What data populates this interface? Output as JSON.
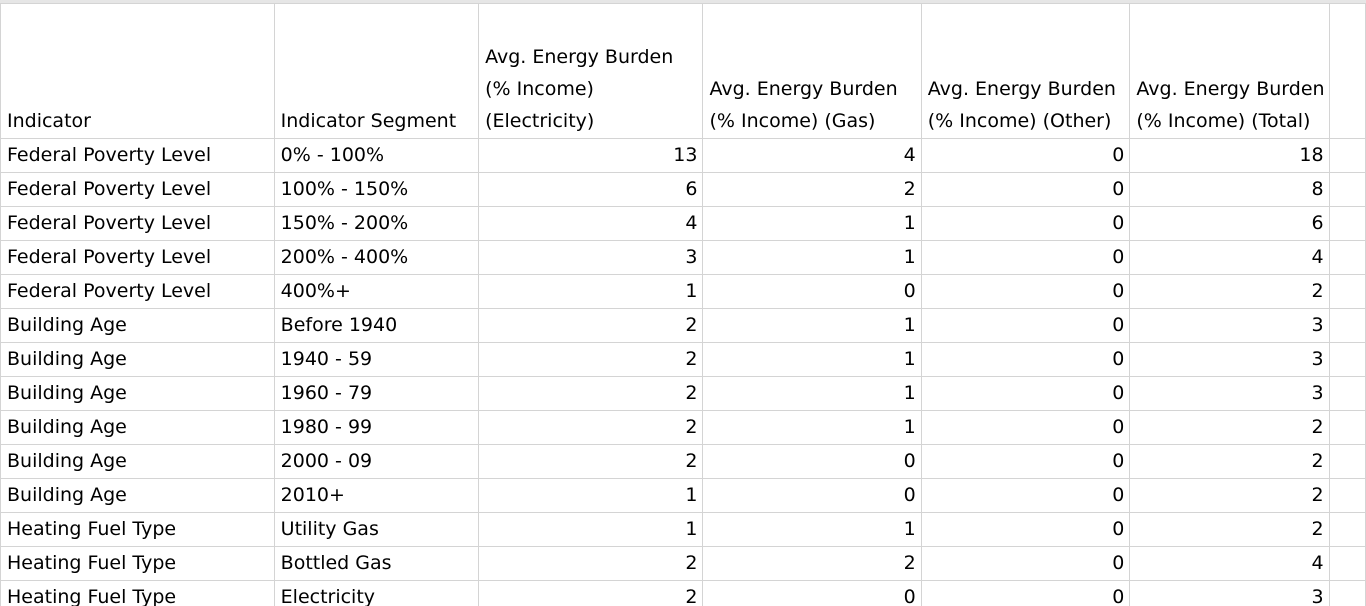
{
  "headers": [
    "Indicator",
    "Indicator Segment",
    [
      "Avg. Energy Burden",
      "(% Income)",
      "(Electricity)"
    ],
    [
      "Avg. Energy Burden",
      "(% Income) (Gas)"
    ],
    [
      "Avg. Energy Burden",
      "(% Income) (Other)"
    ],
    [
      "Avg. Energy Burden",
      "(% Income) (Total)"
    ]
  ],
  "rows": [
    [
      "Federal Poverty Level",
      "0% - 100%",
      "13",
      "4",
      "0",
      "18"
    ],
    [
      "Federal Poverty Level",
      "100% - 150%",
      "6",
      "2",
      "0",
      "8"
    ],
    [
      "Federal Poverty Level",
      "150% - 200%",
      "4",
      "1",
      "0",
      "6"
    ],
    [
      "Federal Poverty Level",
      "200% - 400%",
      "3",
      "1",
      "0",
      "4"
    ],
    [
      "Federal Poverty Level",
      "400%+",
      "1",
      "0",
      "0",
      "2"
    ],
    [
      "Building Age",
      "Before 1940",
      "2",
      "1",
      "0",
      "3"
    ],
    [
      "Building Age",
      "1940 - 59",
      "2",
      "1",
      "0",
      "3"
    ],
    [
      "Building Age",
      "1960 - 79",
      "2",
      "1",
      "0",
      "3"
    ],
    [
      "Building Age",
      "1980 - 99",
      "2",
      "1",
      "0",
      "2"
    ],
    [
      "Building Age",
      "2000 - 09",
      "2",
      "0",
      "0",
      "2"
    ],
    [
      "Building Age",
      "2010+",
      "1",
      "0",
      "0",
      "2"
    ],
    [
      "Heating Fuel Type",
      "Utility Gas",
      "1",
      "1",
      "0",
      "2"
    ],
    [
      "Heating Fuel Type",
      "Bottled Gas",
      "2",
      "2",
      "0",
      "4"
    ],
    [
      "Heating Fuel Type",
      "Electricity",
      "2",
      "0",
      "0",
      "3"
    ]
  ]
}
